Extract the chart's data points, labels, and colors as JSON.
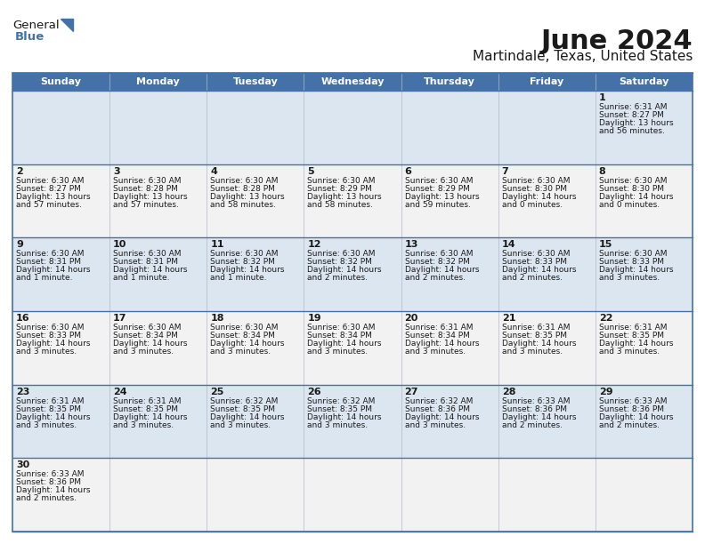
{
  "title": "June 2024",
  "subtitle": "Martindale, Texas, United States",
  "header_color": "#4472a8",
  "header_text_color": "#ffffff",
  "bg_color": "#ffffff",
  "row_bg_0": "#dce6f0",
  "row_bg_1": "#f2f2f2",
  "grid_color": "#4472a8",
  "text_color": "#1a1a1a",
  "day_names": [
    "Sunday",
    "Monday",
    "Tuesday",
    "Wednesday",
    "Thursday",
    "Friday",
    "Saturday"
  ],
  "calendar": [
    [
      null,
      null,
      null,
      null,
      null,
      null,
      {
        "day": "1",
        "sunrise": "6:31 AM",
        "sunset": "8:27 PM",
        "daylight": "13 hours\nand 56 minutes."
      }
    ],
    [
      {
        "day": "2",
        "sunrise": "6:30 AM",
        "sunset": "8:27 PM",
        "daylight": "13 hours\nand 57 minutes."
      },
      {
        "day": "3",
        "sunrise": "6:30 AM",
        "sunset": "8:28 PM",
        "daylight": "13 hours\nand 57 minutes."
      },
      {
        "day": "4",
        "sunrise": "6:30 AM",
        "sunset": "8:28 PM",
        "daylight": "13 hours\nand 58 minutes."
      },
      {
        "day": "5",
        "sunrise": "6:30 AM",
        "sunset": "8:29 PM",
        "daylight": "13 hours\nand 58 minutes."
      },
      {
        "day": "6",
        "sunrise": "6:30 AM",
        "sunset": "8:29 PM",
        "daylight": "13 hours\nand 59 minutes."
      },
      {
        "day": "7",
        "sunrise": "6:30 AM",
        "sunset": "8:30 PM",
        "daylight": "14 hours\nand 0 minutes."
      },
      {
        "day": "8",
        "sunrise": "6:30 AM",
        "sunset": "8:30 PM",
        "daylight": "14 hours\nand 0 minutes."
      }
    ],
    [
      {
        "day": "9",
        "sunrise": "6:30 AM",
        "sunset": "8:31 PM",
        "daylight": "14 hours\nand 1 minute."
      },
      {
        "day": "10",
        "sunrise": "6:30 AM",
        "sunset": "8:31 PM",
        "daylight": "14 hours\nand 1 minute."
      },
      {
        "day": "11",
        "sunrise": "6:30 AM",
        "sunset": "8:32 PM",
        "daylight": "14 hours\nand 1 minute."
      },
      {
        "day": "12",
        "sunrise": "6:30 AM",
        "sunset": "8:32 PM",
        "daylight": "14 hours\nand 2 minutes."
      },
      {
        "day": "13",
        "sunrise": "6:30 AM",
        "sunset": "8:32 PM",
        "daylight": "14 hours\nand 2 minutes."
      },
      {
        "day": "14",
        "sunrise": "6:30 AM",
        "sunset": "8:33 PM",
        "daylight": "14 hours\nand 2 minutes."
      },
      {
        "day": "15",
        "sunrise": "6:30 AM",
        "sunset": "8:33 PM",
        "daylight": "14 hours\nand 3 minutes."
      }
    ],
    [
      {
        "day": "16",
        "sunrise": "6:30 AM",
        "sunset": "8:33 PM",
        "daylight": "14 hours\nand 3 minutes."
      },
      {
        "day": "17",
        "sunrise": "6:30 AM",
        "sunset": "8:34 PM",
        "daylight": "14 hours\nand 3 minutes."
      },
      {
        "day": "18",
        "sunrise": "6:30 AM",
        "sunset": "8:34 PM",
        "daylight": "14 hours\nand 3 minutes."
      },
      {
        "day": "19",
        "sunrise": "6:30 AM",
        "sunset": "8:34 PM",
        "daylight": "14 hours\nand 3 minutes."
      },
      {
        "day": "20",
        "sunrise": "6:31 AM",
        "sunset": "8:34 PM",
        "daylight": "14 hours\nand 3 minutes."
      },
      {
        "day": "21",
        "sunrise": "6:31 AM",
        "sunset": "8:35 PM",
        "daylight": "14 hours\nand 3 minutes."
      },
      {
        "day": "22",
        "sunrise": "6:31 AM",
        "sunset": "8:35 PM",
        "daylight": "14 hours\nand 3 minutes."
      }
    ],
    [
      {
        "day": "23",
        "sunrise": "6:31 AM",
        "sunset": "8:35 PM",
        "daylight": "14 hours\nand 3 minutes."
      },
      {
        "day": "24",
        "sunrise": "6:31 AM",
        "sunset": "8:35 PM",
        "daylight": "14 hours\nand 3 minutes."
      },
      {
        "day": "25",
        "sunrise": "6:32 AM",
        "sunset": "8:35 PM",
        "daylight": "14 hours\nand 3 minutes."
      },
      {
        "day": "26",
        "sunrise": "6:32 AM",
        "sunset": "8:35 PM",
        "daylight": "14 hours\nand 3 minutes."
      },
      {
        "day": "27",
        "sunrise": "6:32 AM",
        "sunset": "8:36 PM",
        "daylight": "14 hours\nand 3 minutes."
      },
      {
        "day": "28",
        "sunrise": "6:33 AM",
        "sunset": "8:36 PM",
        "daylight": "14 hours\nand 2 minutes."
      },
      {
        "day": "29",
        "sunrise": "6:33 AM",
        "sunset": "8:36 PM",
        "daylight": "14 hours\nand 2 minutes."
      }
    ],
    [
      {
        "day": "30",
        "sunrise": "6:33 AM",
        "sunset": "8:36 PM",
        "daylight": "14 hours\nand 2 minutes."
      },
      null,
      null,
      null,
      null,
      null,
      null
    ]
  ],
  "title_fontsize": 22,
  "subtitle_fontsize": 11,
  "header_fontsize": 8,
  "day_num_fontsize": 8,
  "cell_text_fontsize": 6.5
}
